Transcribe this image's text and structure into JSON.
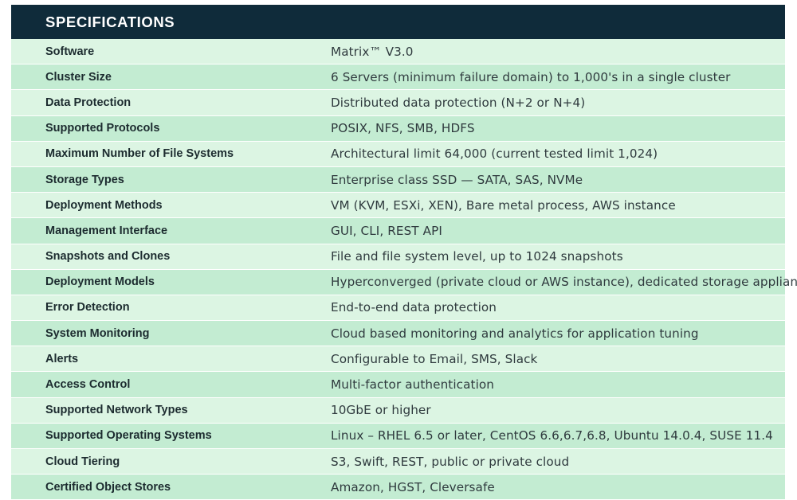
{
  "header": {
    "title": "SPECIFICATIONS"
  },
  "colors": {
    "header_bg": "#0f2b3a",
    "row_light": "#dcf5e3",
    "row_dark": "#c3ecd2"
  },
  "rows": [
    {
      "label": "Software",
      "value": "Matrix™ V3.0"
    },
    {
      "label": "Cluster Size",
      "value": "6 Servers (minimum failure domain) to 1,000's in a single cluster"
    },
    {
      "label": "Data Protection",
      "value": "Distributed data protection  (N+2 or N+4)"
    },
    {
      "label": "Supported Protocols",
      "value": "POSIX, NFS, SMB, HDFS"
    },
    {
      "label": "Maximum Number of File Systems",
      "value": "Architectural limit 64,000 (current tested limit 1,024)"
    },
    {
      "label": "Storage Types",
      "value": "Enterprise class SSD — SATA, SAS, NVMe"
    },
    {
      "label": "Deployment Methods",
      "value": "VM (KVM, ESXi, XEN), Bare metal process, AWS instance"
    },
    {
      "label": "Management Interface",
      "value": "GUI, CLI, REST API"
    },
    {
      "label": "Snapshots and Clones",
      "value": "File and file system level, up to 1024 snapshots"
    },
    {
      "label": "Deployment Models",
      "value": "Hyperconverged (private cloud or AWS instance), dedicated storage appliance"
    },
    {
      "label": "Error Detection",
      "value": "End-to-end data protection"
    },
    {
      "label": "System Monitoring",
      "value": "Cloud based monitoring and analytics for application tuning"
    },
    {
      "label": "Alerts",
      "value": "Configurable to Email, SMS, Slack"
    },
    {
      "label": "Access Control",
      "value": "Multi-factor authentication"
    },
    {
      "label": "Supported Network Types",
      "value": "10GbE or higher"
    },
    {
      "label": "Supported Operating Systems",
      "value": "Linux – RHEL 6.5 or later, CentOS 6.6,6.7,6.8, Ubuntu 14.0.4, SUSE 11.4"
    },
    {
      "label": "Cloud Tiering",
      "value": "S3, Swift, REST, public or private cloud"
    },
    {
      "label": "Certified Object Stores",
      "value": "Amazon, HGST, Cleversafe"
    }
  ]
}
